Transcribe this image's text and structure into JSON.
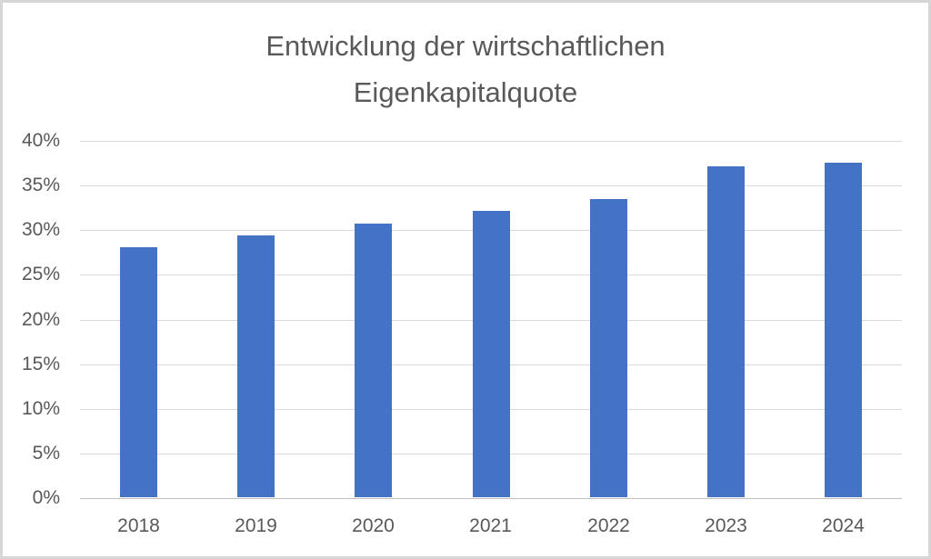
{
  "chart_data": {
    "type": "bar",
    "title": "Entwicklung der wirtschaftlichen Eigenkapitalquote",
    "title_lines": [
      "Entwicklung der wirtschaftlichen",
      "Eigenkapitalquote"
    ],
    "categories": [
      "2018",
      "2019",
      "2020",
      "2021",
      "2022",
      "2023",
      "2024"
    ],
    "values": [
      28,
      29.3,
      30.6,
      32.1,
      33.4,
      37,
      37.5
    ],
    "xlabel": "",
    "ylabel": "",
    "ylim": [
      0,
      40
    ],
    "ytick_step": 5,
    "ytick_labels": [
      "0%",
      "5%",
      "10%",
      "15%",
      "20%",
      "25%",
      "30%",
      "35%",
      "40%"
    ],
    "grid": true,
    "legend": false,
    "colors": {
      "bar_fill": "#4472c4",
      "gridline": "#d9d9d9",
      "axis_line": "#bfbfbf",
      "text": "#595959",
      "frame_border": "#d6d6d6",
      "background": "#ffffff"
    }
  }
}
